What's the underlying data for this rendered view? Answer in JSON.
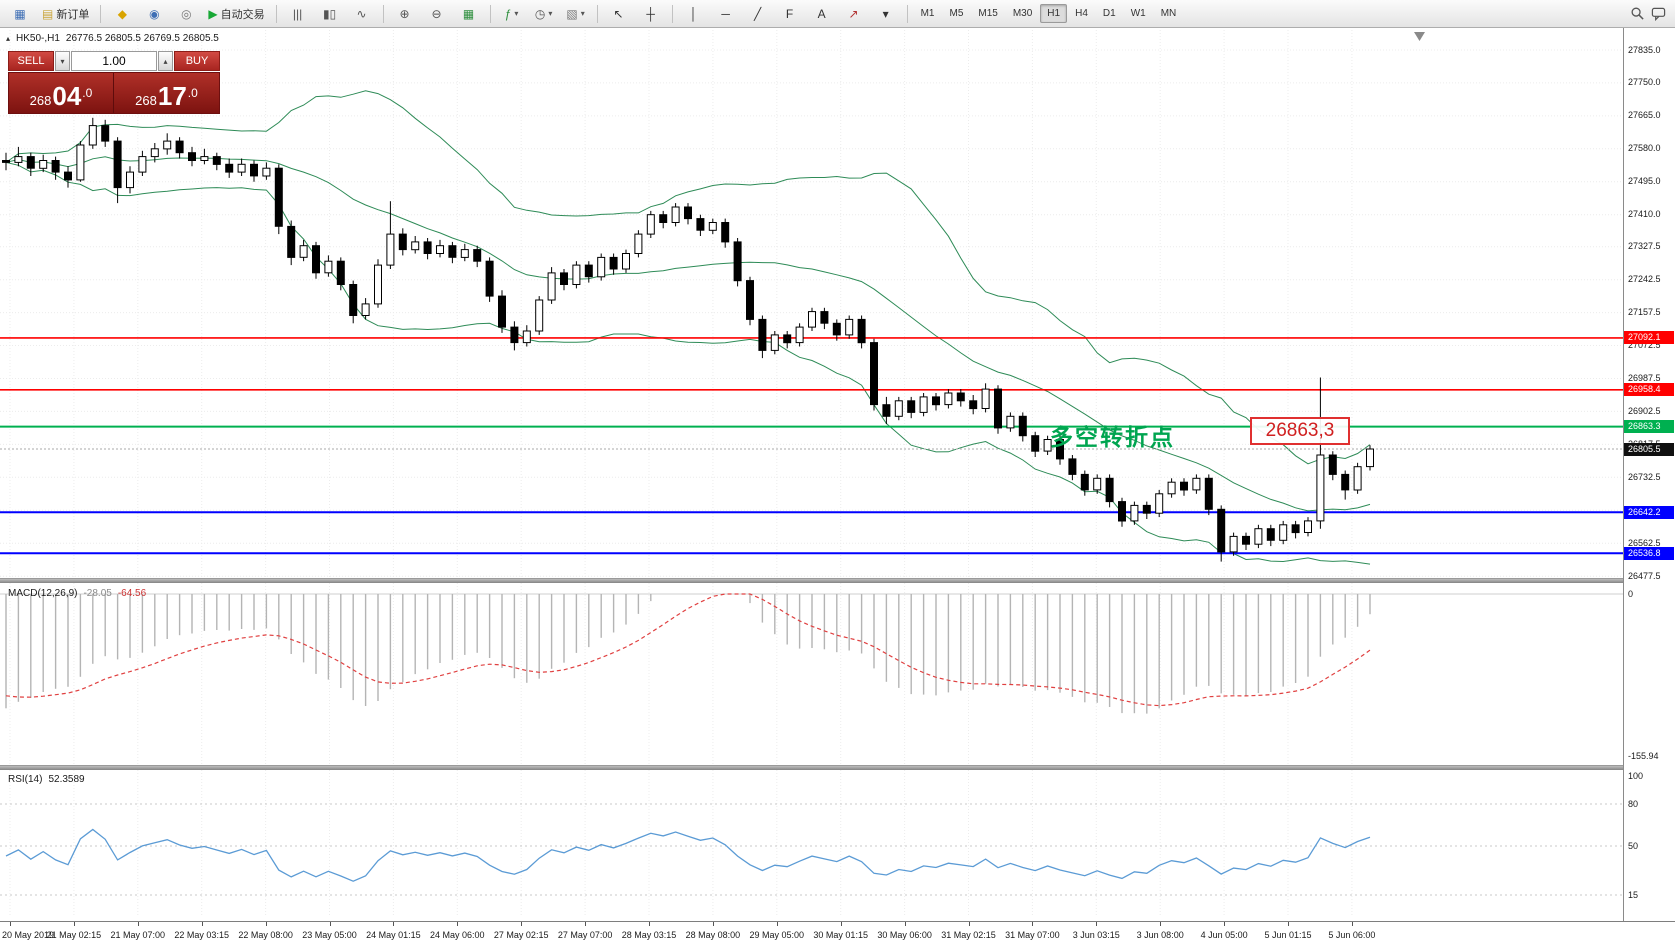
{
  "icons": {
    "caret_up": "▴",
    "caret_down": "▾",
    "collapse": "▴"
  },
  "toolbar": {
    "buttons": [
      {
        "name": "app-menu-icon",
        "glyph": "▦",
        "color": "#3f6fb5"
      },
      {
        "name": "new-order-button",
        "glyph": "▤",
        "color": "#caa53c",
        "label": "新订单"
      },
      {
        "sep": true
      },
      {
        "name": "favorites-icon",
        "glyph": "◆",
        "color": "#d9a400"
      },
      {
        "name": "market-watch-icon",
        "glyph": "◉",
        "color": "#3f6fb5"
      },
      {
        "name": "data-window-icon",
        "glyph": "◎",
        "color": "#777777"
      },
      {
        "name": "autotrading-button",
        "glyph": "▶",
        "color": "#18a835",
        "label": "自动交易"
      },
      {
        "sep": true
      },
      {
        "name": "bar-chart-icon",
        "glyph": "|||",
        "color": "#555555"
      },
      {
        "name": "candlestick-chart-icon",
        "glyph": "▮▯",
        "color": "#555555"
      },
      {
        "name": "line-chart-icon",
        "glyph": "∿",
        "color": "#555555"
      },
      {
        "sep": true
      },
      {
        "name": "zoom-in-icon",
        "glyph": "⊕",
        "color": "#555555"
      },
      {
        "name": "zoom-out-icon",
        "glyph": "⊖",
        "color": "#555555"
      },
      {
        "name": "tile-windows-icon",
        "glyph": "▦",
        "color": "#2e8f3e"
      },
      {
        "sep": true
      },
      {
        "name": "indicators-button",
        "glyph": "ƒ",
        "color": "#2e8f3e",
        "caret": true
      },
      {
        "name": "periods-button",
        "glyph": "◷",
        "color": "#555555",
        "caret": true
      },
      {
        "name": "templates-button",
        "glyph": "▧",
        "color": "#777777",
        "caret": true
      },
      {
        "sep": true
      },
      {
        "name": "cursor-tool-icon",
        "glyph": "↖",
        "color": "#333333"
      },
      {
        "name": "crosshair-tool-icon",
        "glyph": "┼",
        "color": "#333333"
      },
      {
        "sep": true
      },
      {
        "name": "vertical-line-tool-icon",
        "glyph": "│",
        "color": "#333333"
      },
      {
        "name": "horizontal-line-tool-icon",
        "glyph": "─",
        "color": "#333333"
      },
      {
        "name": "trendline-tool-icon",
        "glyph": "╱",
        "color": "#333333"
      },
      {
        "name": "fibonacci-tool-icon",
        "glyph": "F",
        "color": "#333333"
      },
      {
        "name": "text-tool-icon",
        "glyph": "A",
        "color": "#333333"
      },
      {
        "name": "arrows-tool-icon",
        "glyph": "↗",
        "color": "#b23333"
      },
      {
        "name": "more-tools-caret",
        "glyph": "▾",
        "color": "#333333"
      },
      {
        "sep": true
      }
    ],
    "timeframes": {
      "items": [
        "M1",
        "M5",
        "M15",
        "M30",
        "H1",
        "H4",
        "D1",
        "W1",
        "MN"
      ],
      "active": "H1"
    }
  },
  "chart": {
    "header": {
      "symbol": "HK50-,H1",
      "ohlc": "26776.5 26805.5 26769.5 26805.5"
    },
    "trade_panel": {
      "sell_label": "SELL",
      "buy_label": "BUY",
      "volume": "1.00",
      "sell": {
        "prefix": "268",
        "big": "04",
        "frac": ".0"
      },
      "buy": {
        "prefix": "268",
        "big": "17",
        "frac": ".0"
      }
    },
    "annotation": {
      "text": "多空转折点",
      "price_label": "26863,3"
    }
  },
  "indicators": {
    "macd": {
      "name": "MACD(12,26,9)",
      "value_main": "-28.05",
      "value_signal": "-64.56",
      "scale_top": "0",
      "scale_bottom": "-155.94"
    },
    "rsi": {
      "name": "RSI(14)",
      "value": "52.3589"
    }
  },
  "chart_data": {
    "type": "candlestick",
    "symbol": "HK50-",
    "timeframe": "H1",
    "ohlc_readout": {
      "open": 26776.5,
      "high": 26805.5,
      "low": 26769.5,
      "close": 26805.5
    },
    "ylim": [
      26462,
      27887
    ],
    "y_axis_ticks": [
      27835.0,
      27750.0,
      27665.0,
      27580.0,
      27495.0,
      27410.0,
      27327.5,
      27242.5,
      27157.5,
      27072.5,
      26987.5,
      26902.5,
      26817.5,
      26732.5,
      26647.5,
      26562.5,
      26477.5
    ],
    "x_axis_labels": [
      "20 May 2019",
      "21 May 02:15",
      "21 May 07:00",
      "22 May 03:15",
      "22 May 08:00",
      "23 May 05:00",
      "24 May 01:15",
      "24 May 06:00",
      "27 May 02:15",
      "27 May 07:00",
      "28 May 03:15",
      "28 May 08:00",
      "29 May 05:00",
      "30 May 01:15",
      "30 May 06:00",
      "31 May 02:15",
      "31 May 07:00",
      "3 Jun 03:15",
      "3 Jun 08:00",
      "4 Jun 05:00",
      "5 Jun 01:15",
      "5 Jun 06:00"
    ],
    "candles": [
      [
        27550,
        27570,
        27525,
        27545
      ],
      [
        27545,
        27585,
        27535,
        27560
      ],
      [
        27560,
        27570,
        27510,
        27530
      ],
      [
        27530,
        27565,
        27520,
        27550
      ],
      [
        27550,
        27560,
        27500,
        27520
      ],
      [
        27520,
        27535,
        27480,
        27500
      ],
      [
        27500,
        27600,
        27495,
        27590
      ],
      [
        27590,
        27660,
        27580,
        27640
      ],
      [
        27640,
        27655,
        27585,
        27600
      ],
      [
        27600,
        27610,
        27440,
        27480
      ],
      [
        27480,
        27535,
        27465,
        27520
      ],
      [
        27520,
        27575,
        27510,
        27560
      ],
      [
        27560,
        27595,
        27545,
        27580
      ],
      [
        27580,
        27620,
        27565,
        27600
      ],
      [
        27600,
        27610,
        27555,
        27570
      ],
      [
        27570,
        27585,
        27535,
        27550
      ],
      [
        27550,
        27580,
        27540,
        27560
      ],
      [
        27560,
        27570,
        27525,
        27540
      ],
      [
        27540,
        27555,
        27505,
        27520
      ],
      [
        27520,
        27555,
        27510,
        27540
      ],
      [
        27540,
        27550,
        27495,
        27510
      ],
      [
        27510,
        27545,
        27500,
        27530
      ],
      [
        27530,
        27540,
        27360,
        27380
      ],
      [
        27380,
        27395,
        27280,
        27300
      ],
      [
        27300,
        27345,
        27290,
        27330
      ],
      [
        27330,
        27340,
        27245,
        27260
      ],
      [
        27260,
        27305,
        27250,
        27290
      ],
      [
        27290,
        27300,
        27215,
        27230
      ],
      [
        27230,
        27240,
        27130,
        27150
      ],
      [
        27150,
        27195,
        27140,
        27180
      ],
      [
        27180,
        27295,
        27170,
        27280
      ],
      [
        27280,
        27445,
        27270,
        27360
      ],
      [
        27360,
        27375,
        27305,
        27320
      ],
      [
        27320,
        27355,
        27310,
        27340
      ],
      [
        27340,
        27350,
        27295,
        27310
      ],
      [
        27310,
        27345,
        27300,
        27330
      ],
      [
        27330,
        27340,
        27285,
        27300
      ],
      [
        27300,
        27335,
        27290,
        27320
      ],
      [
        27320,
        27330,
        27275,
        27290
      ],
      [
        27290,
        27300,
        27185,
        27200
      ],
      [
        27200,
        27215,
        27105,
        27120
      ],
      [
        27120,
        27135,
        27060,
        27080
      ],
      [
        27080,
        27125,
        27070,
        27110
      ],
      [
        27110,
        27200,
        27100,
        27190
      ],
      [
        27190,
        27275,
        27180,
        27260
      ],
      [
        27260,
        27270,
        27215,
        27230
      ],
      [
        27230,
        27290,
        27220,
        27280
      ],
      [
        27280,
        27290,
        27235,
        27250
      ],
      [
        27250,
        27310,
        27240,
        27300
      ],
      [
        27300,
        27310,
        27255,
        27270
      ],
      [
        27270,
        27320,
        27260,
        27310
      ],
      [
        27310,
        27370,
        27300,
        27360
      ],
      [
        27360,
        27420,
        27350,
        27410
      ],
      [
        27410,
        27420,
        27375,
        27390
      ],
      [
        27390,
        27440,
        27380,
        27430
      ],
      [
        27430,
        27440,
        27385,
        27400
      ],
      [
        27400,
        27410,
        27355,
        27370
      ],
      [
        27370,
        27400,
        27360,
        27390
      ],
      [
        27390,
        27400,
        27325,
        27340
      ],
      [
        27340,
        27350,
        27225,
        27240
      ],
      [
        27240,
        27250,
        27125,
        27140
      ],
      [
        27140,
        27150,
        27040,
        27060
      ],
      [
        27060,
        27110,
        27050,
        27100
      ],
      [
        27100,
        27110,
        27065,
        27080
      ],
      [
        27080,
        27130,
        27070,
        27120
      ],
      [
        27120,
        27170,
        27110,
        27160
      ],
      [
        27160,
        27170,
        27115,
        27130
      ],
      [
        27130,
        27140,
        27085,
        27100
      ],
      [
        27100,
        27150,
        27090,
        27140
      ],
      [
        27140,
        27150,
        27065,
        27080
      ],
      [
        27080,
        27090,
        26905,
        26920
      ],
      [
        26920,
        26940,
        26870,
        26890
      ],
      [
        26890,
        26940,
        26880,
        26930
      ],
      [
        26930,
        26940,
        26885,
        26900
      ],
      [
        26900,
        26950,
        26890,
        26940
      ],
      [
        26940,
        26950,
        26905,
        26920
      ],
      [
        26920,
        26960,
        26910,
        26950
      ],
      [
        26950,
        26960,
        26915,
        26930
      ],
      [
        26930,
        26945,
        26895,
        26910
      ],
      [
        26910,
        26975,
        26900,
        26960
      ],
      [
        26960,
        26970,
        26845,
        26860
      ],
      [
        26860,
        26900,
        26850,
        26890
      ],
      [
        26890,
        26900,
        26825,
        26840
      ],
      [
        26840,
        26850,
        26785,
        26800
      ],
      [
        26800,
        26840,
        26790,
        26830
      ],
      [
        26830,
        26840,
        26765,
        26780
      ],
      [
        26780,
        26790,
        26725,
        26740
      ],
      [
        26740,
        26750,
        26685,
        26700
      ],
      [
        26700,
        26740,
        26690,
        26730
      ],
      [
        26730,
        26740,
        26655,
        26670
      ],
      [
        26670,
        26680,
        26605,
        26620
      ],
      [
        26620,
        26670,
        26610,
        26660
      ],
      [
        26660,
        26670,
        26625,
        26640
      ],
      [
        26640,
        26700,
        26630,
        26690
      ],
      [
        26690,
        26730,
        26680,
        26720
      ],
      [
        26720,
        26730,
        26685,
        26700
      ],
      [
        26700,
        26740,
        26690,
        26730
      ],
      [
        26730,
        26740,
        26635,
        26650
      ],
      [
        26650,
        26660,
        26515,
        26540
      ],
      [
        26540,
        26590,
        26530,
        26580
      ],
      [
        26580,
        26590,
        26545,
        26560
      ],
      [
        26560,
        26610,
        26550,
        26600
      ],
      [
        26600,
        26610,
        26555,
        26570
      ],
      [
        26570,
        26620,
        26560,
        26610
      ],
      [
        26610,
        26620,
        26575,
        26590
      ],
      [
        26590,
        26630,
        26580,
        26620
      ],
      [
        26620,
        26990,
        26600,
        26790
      ],
      [
        26790,
        26800,
        26725,
        26740
      ],
      [
        26740,
        26750,
        26675,
        26700
      ],
      [
        26700,
        26770,
        26690,
        26760
      ],
      [
        26760,
        26815,
        26750,
        26805.5
      ]
    ],
    "overlays": {
      "bollinger": {
        "period": 20,
        "deviation": 2
      },
      "hlines": [
        {
          "price": 27092.1,
          "color": "#ff0000",
          "width": 1.6
        },
        {
          "price": 26958.4,
          "color": "#ff0000",
          "width": 1.6
        },
        {
          "price": 26863.3,
          "color": "#00b050",
          "width": 2
        },
        {
          "price": 26642.2,
          "color": "#0000ff",
          "width": 2
        },
        {
          "price": 26536.8,
          "color": "#0000ff",
          "width": 2
        }
      ],
      "current_price": 26805.5
    },
    "macd": {
      "params": [
        12,
        26,
        9
      ],
      "current": [
        -28.05,
        -64.56
      ],
      "y_range": [
        0,
        -155.94
      ]
    },
    "rsi": {
      "period": 14,
      "current": 52.3589,
      "scale_labels": [
        100,
        80,
        50,
        15
      ]
    },
    "colors": {
      "bollinger": "#2e8b57",
      "up_candle": "#ffffff",
      "down_candle": "#000000",
      "wick": "#000000",
      "grid": "#ececec",
      "macd_histogram": "#b4b4b4",
      "macd_signal": "#e04040",
      "rsi_line": "#5b9bd5",
      "current_price_tag": "#101010"
    }
  }
}
